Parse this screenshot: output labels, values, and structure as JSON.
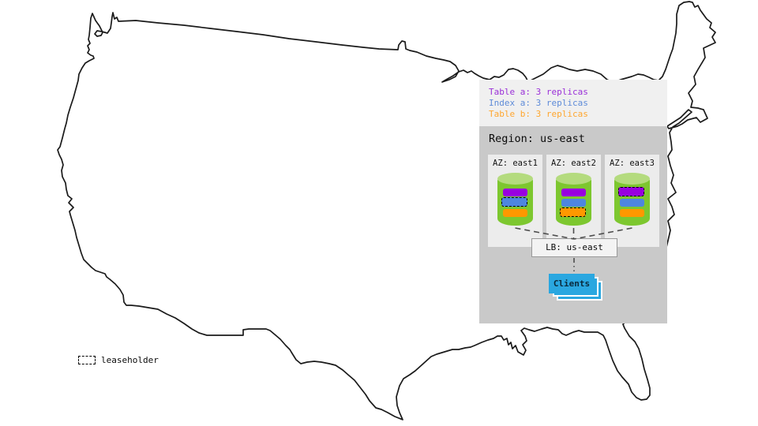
{
  "panel": {
    "legend": {
      "items": [
        {
          "id": "table-a",
          "label": "Table a: 3 replicas",
          "color": "#9a30d8"
        },
        {
          "id": "index-a",
          "label": "Index a: 3 replicas",
          "color": "#5e8bd8"
        },
        {
          "id": "table-b",
          "label": "Table b: 3 replicas",
          "color": "#ffa62e"
        }
      ]
    },
    "region": {
      "title": "Region: us-east",
      "azs": [
        {
          "label": "AZ: east1",
          "replicas": [
            {
              "id": "table-a",
              "color": "#9900e0",
              "leaseholder": false
            },
            {
              "id": "index-a",
              "color": "#4e86df",
              "leaseholder": true
            },
            {
              "id": "table-b",
              "color": "#ff9800",
              "leaseholder": false
            }
          ]
        },
        {
          "label": "AZ: east2",
          "replicas": [
            {
              "id": "table-a",
              "color": "#9900e0",
              "leaseholder": false
            },
            {
              "id": "index-a",
              "color": "#4e86df",
              "leaseholder": false
            },
            {
              "id": "table-b",
              "color": "#ff9800",
              "leaseholder": true
            }
          ]
        },
        {
          "label": "AZ: east3",
          "replicas": [
            {
              "id": "table-a",
              "color": "#9900e0",
              "leaseholder": true
            },
            {
              "id": "index-a",
              "color": "#4e86df",
              "leaseholder": false
            },
            {
              "id": "table-b",
              "color": "#ff9800",
              "leaseholder": false
            }
          ]
        }
      ],
      "load_balancer": {
        "label": "LB: us-east"
      },
      "clients": {
        "label": "Clients",
        "color": "#2aa7e0"
      }
    }
  },
  "map_key": {
    "leaseholder_label": "leaseholder"
  },
  "colors": {
    "cylinder_body": "#7dc72f",
    "cylinder_top": "#b4db7e",
    "panel_legend_bg": "#f0f0f0",
    "region_bg": "#c9c9c9",
    "az_bg": "#ececec",
    "connector": "#4d4d4d",
    "map_outline": "#1a1a1a"
  }
}
